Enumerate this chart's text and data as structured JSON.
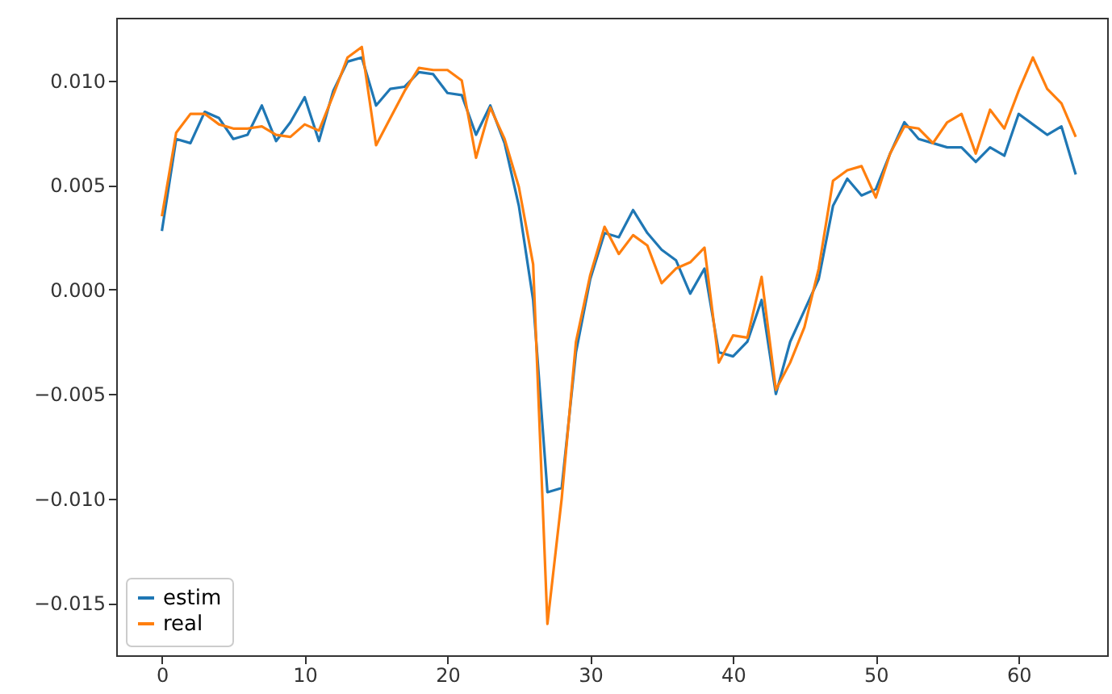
{
  "chart_data": {
    "type": "line",
    "x": [
      0,
      1,
      2,
      3,
      4,
      5,
      6,
      7,
      8,
      9,
      10,
      11,
      12,
      13,
      14,
      15,
      16,
      17,
      18,
      19,
      20,
      21,
      22,
      23,
      24,
      25,
      26,
      27,
      28,
      29,
      30,
      31,
      32,
      33,
      34,
      35,
      36,
      37,
      38,
      39,
      40,
      41,
      42,
      43,
      44,
      45,
      46,
      47,
      48,
      49,
      50,
      51,
      52,
      53,
      54,
      55,
      56,
      57,
      58,
      59,
      60,
      61,
      62,
      63,
      64
    ],
    "series": [
      {
        "name": "estim",
        "color": "#1f77b4",
        "values": [
          0.0028,
          0.0072,
          0.007,
          0.0085,
          0.0082,
          0.0072,
          0.0074,
          0.0088,
          0.0071,
          0.008,
          0.0092,
          0.0071,
          0.0095,
          0.0109,
          0.0111,
          0.0088,
          0.0096,
          0.0097,
          0.0104,
          0.0103,
          0.0094,
          0.0093,
          0.0074,
          0.0088,
          0.007,
          0.004,
          -0.0005,
          -0.0097,
          -0.0095,
          -0.003,
          0.0005,
          0.0027,
          0.0025,
          0.0038,
          0.0027,
          0.0019,
          0.0014,
          -0.0002,
          0.001,
          -0.003,
          -0.0032,
          -0.0025,
          -0.0005,
          -0.005,
          -0.0025,
          -0.001,
          0.0005,
          0.004,
          0.0053,
          0.0045,
          0.0048,
          0.0065,
          0.008,
          0.0072,
          0.007,
          0.0068,
          0.0068,
          0.0061,
          0.0068,
          0.0064,
          0.0084,
          0.0079,
          0.0074,
          0.0078,
          0.0055
        ]
      },
      {
        "name": "real",
        "color": "#ff7f0e",
        "values": [
          0.0035,
          0.0075,
          0.0084,
          0.0084,
          0.0079,
          0.0077,
          0.0077,
          0.0078,
          0.0074,
          0.0073,
          0.0079,
          0.0076,
          0.0093,
          0.0111,
          0.0116,
          0.0069,
          0.0082,
          0.0095,
          0.0106,
          0.0105,
          0.0105,
          0.01,
          0.0063,
          0.0087,
          0.0072,
          0.0049,
          0.0012,
          -0.016,
          -0.01,
          -0.0025,
          0.0007,
          0.003,
          0.0017,
          0.0026,
          0.0021,
          0.0003,
          0.001,
          0.0013,
          0.002,
          -0.0035,
          -0.0022,
          -0.0023,
          0.0006,
          -0.0048,
          -0.0035,
          -0.0018,
          0.001,
          0.0052,
          0.0057,
          0.0059,
          0.0044,
          0.0065,
          0.0078,
          0.0077,
          0.007,
          0.008,
          0.0084,
          0.0065,
          0.0086,
          0.0077,
          0.0095,
          0.0111,
          0.0096,
          0.0089,
          0.0073
        ]
      }
    ],
    "xlim": [
      -3.2,
      66.2
    ],
    "xticks": [
      0,
      10,
      20,
      30,
      40,
      50,
      60
    ],
    "ylim": [
      -0.0175,
      0.013
    ],
    "yticks": [
      {
        "value": -0.015,
        "label": "−0.015"
      },
      {
        "value": -0.01,
        "label": "−0.010"
      },
      {
        "value": -0.005,
        "label": "−0.005"
      },
      {
        "value": 0,
        "label": "0.000"
      },
      {
        "value": 0.005,
        "label": "0.005"
      },
      {
        "value": 0.01,
        "label": "0.010"
      }
    ],
    "legend": "bottom left",
    "grid": false,
    "line_style": "solid"
  }
}
